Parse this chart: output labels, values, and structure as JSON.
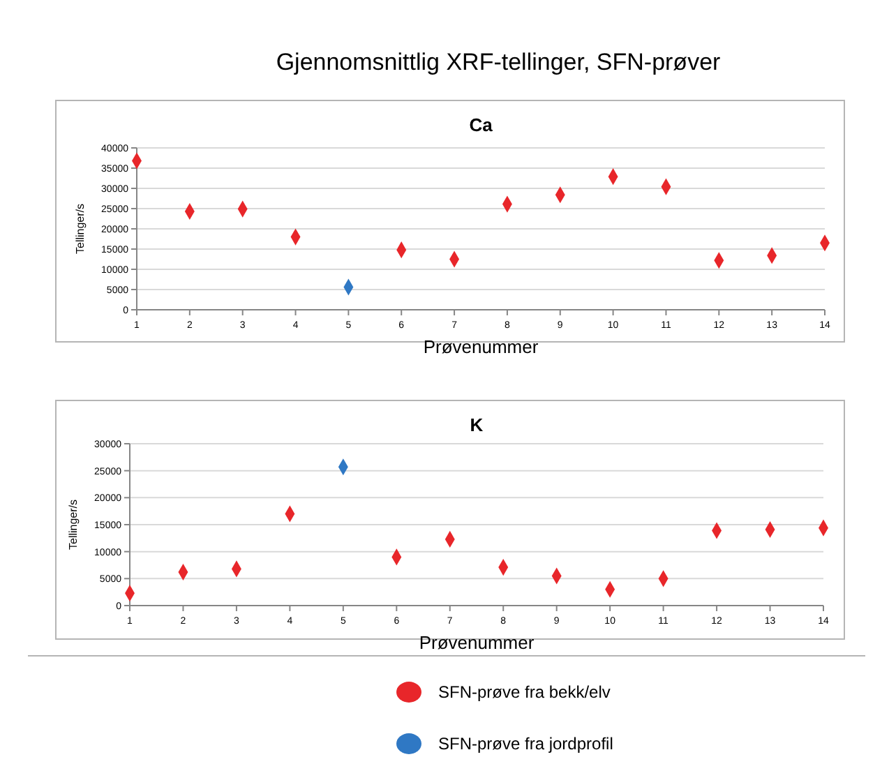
{
  "chart_data": [
    {
      "type": "scatter",
      "title": "Gjennomsnittlig XRF-tellinger, SFN-prøver",
      "subtitle": "Ca",
      "xlabel": "Prøvenummer",
      "ylabel": "Tellinger/s",
      "xlim": [
        1,
        14
      ],
      "xticks": [
        1,
        2,
        3,
        4,
        5,
        6,
        7,
        8,
        9,
        10,
        11,
        12,
        13,
        14
      ],
      "ylim": [
        0,
        40000
      ],
      "yticks": [
        0,
        5000,
        10000,
        15000,
        20000,
        25000,
        30000,
        35000,
        40000
      ],
      "grid": "y",
      "marker": "diamond",
      "series": [
        {
          "color": "#e8262a",
          "x": [
            1,
            2,
            3,
            4,
            6,
            7,
            8,
            9,
            10,
            11,
            12,
            13,
            14
          ],
          "values": [
            36800,
            24300,
            24900,
            18000,
            14800,
            12500,
            26100,
            28400,
            32900,
            30400,
            12200,
            13400,
            16500
          ]
        },
        {
          "color": "#2f78c4",
          "x": [
            5
          ],
          "values": [
            5600
          ]
        }
      ]
    },
    {
      "type": "scatter",
      "subtitle": "K",
      "xlabel": "Prøvenummer",
      "ylabel": "Tellinger/s",
      "xlim": [
        1,
        14
      ],
      "xticks": [
        1,
        2,
        3,
        4,
        5,
        6,
        7,
        8,
        9,
        10,
        11,
        12,
        13,
        14
      ],
      "ylim": [
        0,
        30000
      ],
      "yticks": [
        0,
        5000,
        10000,
        15000,
        20000,
        25000,
        30000
      ],
      "grid": "y",
      "marker": "diamond",
      "legend": "bottom",
      "series": [
        {
          "name": "SFN-prøve fra bekk/elv",
          "color": "#e8262a",
          "x": [
            1,
            2,
            3,
            4,
            6,
            7,
            8,
            9,
            10,
            11,
            12,
            13,
            14
          ],
          "values": [
            2300,
            6200,
            6800,
            17000,
            9000,
            12300,
            7100,
            5500,
            3000,
            5000,
            13900,
            14100,
            14400
          ]
        },
        {
          "name": "SFN-prøve fra jordprofil",
          "color": "#2f78c4",
          "x": [
            5
          ],
          "values": [
            25700
          ]
        }
      ]
    }
  ]
}
